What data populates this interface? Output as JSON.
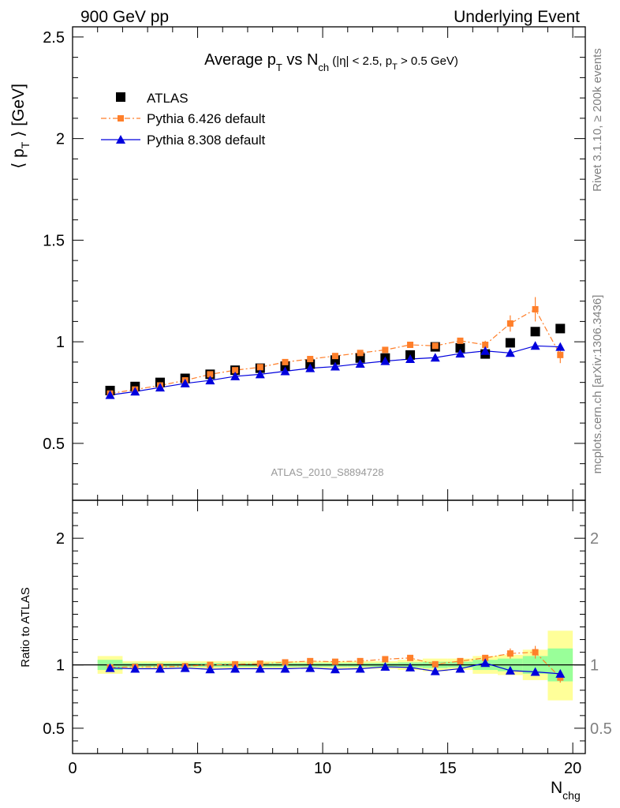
{
  "header": {
    "left": "900 GeV pp",
    "right": "Underlying Event"
  },
  "title": {
    "main": "Average p",
    "t_sub": "T",
    "vs": " vs N",
    "ch_sub": "ch",
    "cuts_a": " (|η| < 2.5, p",
    "cuts_sub": "T",
    "cuts_b": " > 0.5 GeV)"
  },
  "ylabel": {
    "open": "⟨ p",
    "sub": "T",
    "close": " ⟩ [GeV]"
  },
  "ratio_ylabel": "Ratio to ATLAS",
  "xlabel": {
    "main": "N",
    "sub": "chg"
  },
  "watermark": "ATLAS_2010_S8894728",
  "side_text_1": "Rivet 3.1.10, ≥ 200k events",
  "side_text_2": "mcplots.cern.ch [arXiv:1306.3436]",
  "colors": {
    "data": "#000000",
    "py6": "#ff7f2a",
    "py8": "#0000dd",
    "band_inner": "#99ff99",
    "band_outer": "#ffff99"
  },
  "chart_data": [
    {
      "type": "scatter",
      "panel": "main",
      "xlim": [
        0,
        20.5
      ],
      "ylim": [
        0.22,
        2.55
      ],
      "xticks": [
        0,
        5,
        10,
        15,
        20
      ],
      "yticks": [
        0.5,
        1,
        1.5,
        2,
        2.5
      ],
      "ytick_labels": [
        "0.5",
        "1",
        "1.5",
        "2",
        "2.5"
      ],
      "legend_position": "top-left",
      "x": [
        1.5,
        2.5,
        3.5,
        4.5,
        5.5,
        6.5,
        7.5,
        8.5,
        9.5,
        10.5,
        11.5,
        12.5,
        13.5,
        14.5,
        15.5,
        16.5,
        17.5,
        18.5,
        19.5
      ],
      "series": [
        {
          "name": "ATLAS",
          "marker": "square",
          "color": "#000000",
          "values": [
            0.76,
            0.78,
            0.8,
            0.82,
            0.84,
            0.86,
            0.87,
            0.88,
            0.89,
            0.91,
            0.92,
            0.92,
            0.935,
            0.975,
            0.97,
            0.94,
            0.995,
            1.05,
            1.065
          ]
        },
        {
          "name": "Pythia 6.426 default",
          "marker": "square-small",
          "line": "dashdot",
          "color": "#ff7f2a",
          "values": [
            0.745,
            0.765,
            0.785,
            0.81,
            0.84,
            0.86,
            0.875,
            0.9,
            0.915,
            0.93,
            0.945,
            0.96,
            0.985,
            0.98,
            1.005,
            0.985,
            1.09,
            1.16,
            0.935
          ],
          "errors": [
            0,
            0,
            0,
            0,
            0,
            0,
            0,
            0,
            0,
            0,
            0,
            0,
            0,
            0,
            0,
            0.02,
            0.04,
            0.06,
            0.04
          ]
        },
        {
          "name": "Pythia 8.308 default",
          "marker": "triangle",
          "line": "solid",
          "color": "#0000dd",
          "values": [
            0.738,
            0.755,
            0.775,
            0.795,
            0.81,
            0.83,
            0.84,
            0.855,
            0.87,
            0.878,
            0.892,
            0.905,
            0.915,
            0.922,
            0.942,
            0.955,
            0.945,
            0.98,
            0.975
          ]
        }
      ]
    },
    {
      "type": "scatter",
      "panel": "ratio",
      "xlim": [
        0,
        20.5
      ],
      "ylim": [
        0.3,
        2.3
      ],
      "xticks": [
        0,
        5,
        10,
        15,
        20
      ],
      "xtick_labels": [
        "0",
        "5",
        "10",
        "15",
        "20"
      ],
      "yticks": [
        0.5,
        1,
        2
      ],
      "ytick_labels": [
        "0.5",
        "1",
        "2"
      ],
      "x": [
        1.5,
        2.5,
        3.5,
        4.5,
        5.5,
        6.5,
        7.5,
        8.5,
        9.5,
        10.5,
        11.5,
        12.5,
        13.5,
        14.5,
        15.5,
        16.5,
        17.5,
        18.5,
        19.5
      ],
      "bands": {
        "outer": [
          [
            0.93,
            1.07
          ],
          [
            0.97,
            1.03
          ],
          [
            0.97,
            1.03
          ],
          [
            0.97,
            1.03
          ],
          [
            0.97,
            1.03
          ],
          [
            0.97,
            1.03
          ],
          [
            0.97,
            1.03
          ],
          [
            0.97,
            1.03
          ],
          [
            0.97,
            1.03
          ],
          [
            0.97,
            1.03
          ],
          [
            0.97,
            1.03
          ],
          [
            0.97,
            1.03
          ],
          [
            0.96,
            1.04
          ],
          [
            0.95,
            1.05
          ],
          [
            0.96,
            1.05
          ],
          [
            0.93,
            1.07
          ],
          [
            0.92,
            1.08
          ],
          [
            0.88,
            1.12
          ],
          [
            0.72,
            1.27
          ]
        ],
        "inner": [
          [
            0.96,
            1.04
          ],
          [
            0.985,
            1.015
          ],
          [
            0.985,
            1.015
          ],
          [
            0.985,
            1.015
          ],
          [
            0.985,
            1.015
          ],
          [
            0.985,
            1.015
          ],
          [
            0.985,
            1.015
          ],
          [
            0.985,
            1.015
          ],
          [
            0.985,
            1.015
          ],
          [
            0.985,
            1.015
          ],
          [
            0.985,
            1.015
          ],
          [
            0.985,
            1.015
          ],
          [
            0.98,
            1.02
          ],
          [
            0.975,
            1.025
          ],
          [
            0.98,
            1.025
          ],
          [
            0.96,
            1.04
          ],
          [
            0.95,
            1.05
          ],
          [
            0.93,
            1.07
          ],
          [
            0.87,
            1.13
          ]
        ]
      },
      "series": [
        {
          "name": "Pythia 6.426 default",
          "color": "#ff7f2a",
          "values": [
            0.98,
            0.985,
            0.985,
            0.99,
            1.0,
            1.005,
            1.01,
            1.02,
            1.03,
            1.025,
            1.03,
            1.045,
            1.055,
            1.005,
            1.03,
            1.055,
            1.09,
            1.1,
            0.9
          ],
          "errors": [
            0,
            0,
            0,
            0,
            0,
            0,
            0,
            0,
            0,
            0,
            0,
            0,
            0.015,
            0,
            0,
            0.02,
            0.04,
            0.05,
            0.04
          ]
        },
        {
          "name": "Pythia 8.308 default",
          "color": "#0000dd",
          "values": [
            0.975,
            0.97,
            0.97,
            0.975,
            0.965,
            0.97,
            0.97,
            0.97,
            0.975,
            0.965,
            0.97,
            0.985,
            0.98,
            0.95,
            0.97,
            1.015,
            0.955,
            0.945,
            0.93
          ]
        }
      ]
    }
  ]
}
